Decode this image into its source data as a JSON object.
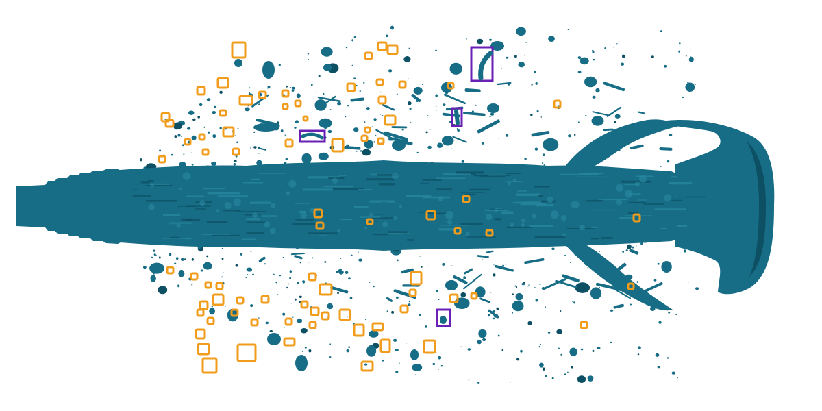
{
  "image": {
    "subject": "liquid-jet-atomization-render",
    "background_color": "#ffffff",
    "jet_color": "#176d86",
    "jet_highlight_color": "#2a8aa3",
    "jet_shadow_color": "#0d4f63"
  },
  "annotations": {
    "droplet_box_color": "#f29c1c",
    "ligament_box_color": "#6a1fb5",
    "droplet_box_count": 78,
    "ligament_box_count": 4
  }
}
